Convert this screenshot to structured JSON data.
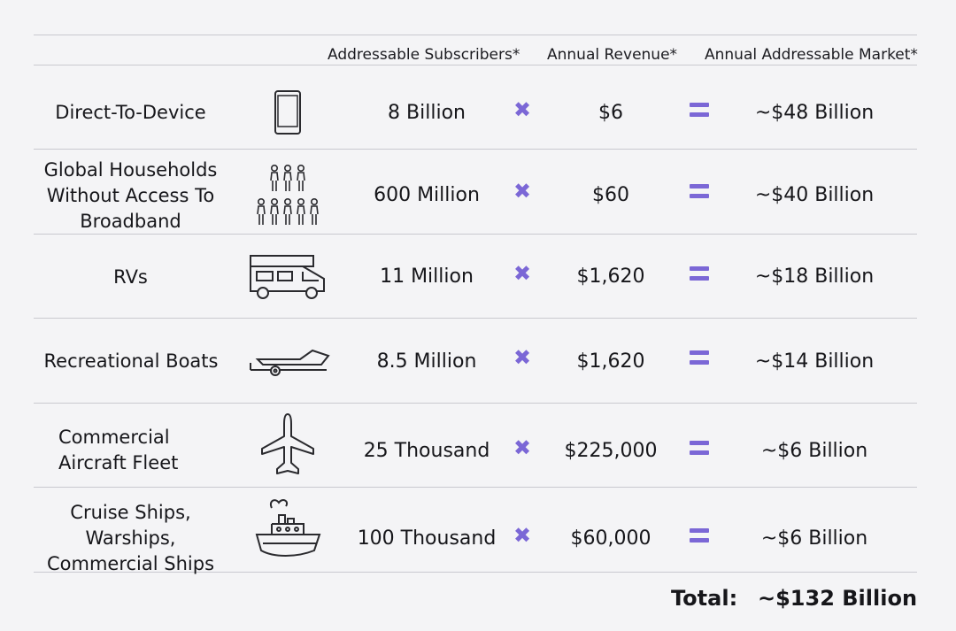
{
  "headers": {
    "subscribers": "Addressable Subscribers*",
    "revenue": "Annual Revenue*",
    "market": "Annual Addressable Market*"
  },
  "rows": [
    {
      "category": "Direct-To-Device",
      "icon": "mobile-phone-icon",
      "subscribers": "8 Billion",
      "revenue": "$6",
      "market": "~$48 Billion"
    },
    {
      "category": "Global Households\nWithout Access To\nBroadband",
      "icon": "people-group-icon",
      "subscribers": "600 Million",
      "revenue": "$60",
      "market": "~$40 Billion"
    },
    {
      "category": "RVs",
      "icon": "rv-camper-icon",
      "subscribers": "11 Million",
      "revenue": "$1,620",
      "market": "~$18 Billion"
    },
    {
      "category": "Recreational Boats",
      "icon": "boat-trailer-icon",
      "subscribers": "8.5 Million",
      "revenue": "$1,620",
      "market": "~$14 Billion"
    },
    {
      "category": "Commercial\nAircraft Fleet",
      "icon": "airplane-icon",
      "subscribers": "25 Thousand",
      "revenue": "$225,000",
      "market": "~$6 Billion"
    },
    {
      "category": "Cruise Ships,\nWarships,\nCommercial Ships",
      "icon": "ship-icon",
      "subscribers": "100 Thousand",
      "revenue": "$60,000",
      "market": "~$6 Billion"
    }
  ],
  "operators": {
    "times": "✖",
    "accent_color": "#7b67d6"
  },
  "total": {
    "label": "Total:",
    "value": "~$132 Billion"
  }
}
